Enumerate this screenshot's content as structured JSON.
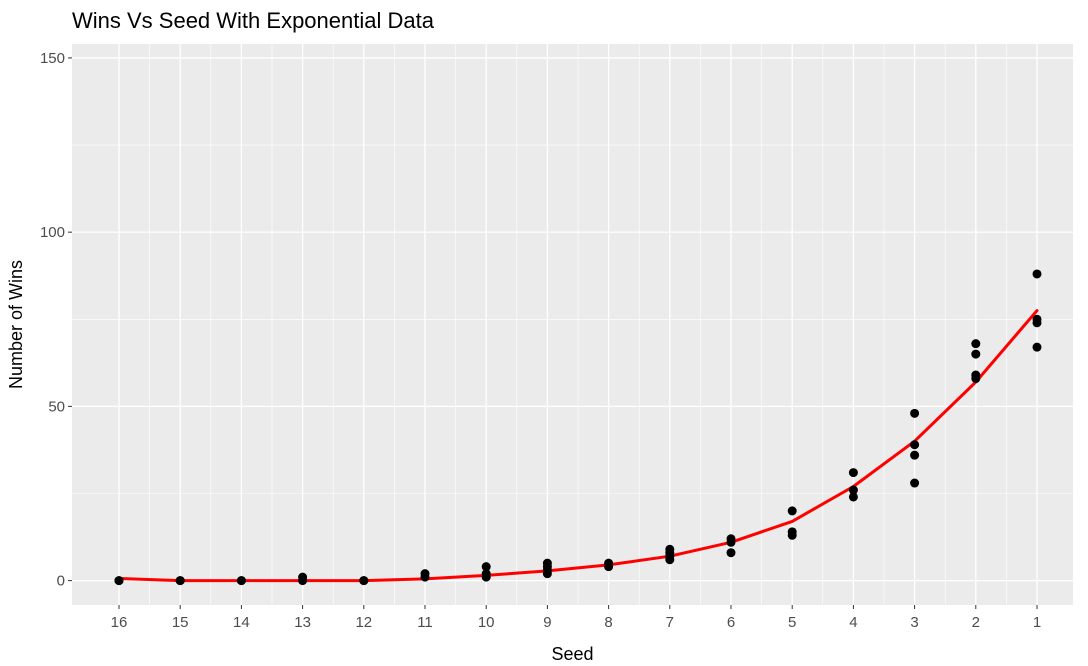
{
  "chart_data": {
    "type": "scatter",
    "title": "Wins Vs Seed With Exponential Data",
    "xlabel": "Seed",
    "ylabel": "Number of Wins",
    "x_categories": [
      "16",
      "15",
      "14",
      "13",
      "12",
      "11",
      "10",
      "9",
      "8",
      "7",
      "6",
      "5",
      "4",
      "3",
      "2",
      "1"
    ],
    "y_ticks": [
      0,
      50,
      100,
      150
    ],
    "ylim": [
      -7,
      154
    ],
    "grid": true,
    "point_color": "#000000",
    "line_color": "#ff0000",
    "panel_background": "#ebebeb",
    "series": [
      {
        "type": "points",
        "values": [
          {
            "x": "16",
            "y": 0
          },
          {
            "x": "16",
            "y": 0
          },
          {
            "x": "15",
            "y": 0
          },
          {
            "x": "15",
            "y": 0
          },
          {
            "x": "14",
            "y": 0
          },
          {
            "x": "14",
            "y": 0
          },
          {
            "x": "13",
            "y": 0
          },
          {
            "x": "13",
            "y": 1
          },
          {
            "x": "12",
            "y": 0
          },
          {
            "x": "12",
            "y": 0
          },
          {
            "x": "11",
            "y": 1
          },
          {
            "x": "11",
            "y": 2
          },
          {
            "x": "10",
            "y": 1
          },
          {
            "x": "10",
            "y": 2
          },
          {
            "x": "10",
            "y": 4
          },
          {
            "x": "9",
            "y": 2
          },
          {
            "x": "9",
            "y": 3
          },
          {
            "x": "9",
            "y": 4
          },
          {
            "x": "9",
            "y": 5
          },
          {
            "x": "8",
            "y": 4
          },
          {
            "x": "8",
            "y": 5
          },
          {
            "x": "7",
            "y": 6
          },
          {
            "x": "7",
            "y": 7
          },
          {
            "x": "7",
            "y": 8
          },
          {
            "x": "7",
            "y": 9
          },
          {
            "x": "6",
            "y": 8
          },
          {
            "x": "6",
            "y": 11
          },
          {
            "x": "6",
            "y": 12
          },
          {
            "x": "5",
            "y": 13
          },
          {
            "x": "5",
            "y": 14
          },
          {
            "x": "5",
            "y": 20
          },
          {
            "x": "4",
            "y": 24
          },
          {
            "x": "4",
            "y": 26
          },
          {
            "x": "4",
            "y": 31
          },
          {
            "x": "3",
            "y": 28
          },
          {
            "x": "3",
            "y": 36
          },
          {
            "x": "3",
            "y": 39
          },
          {
            "x": "3",
            "y": 48
          },
          {
            "x": "2",
            "y": 58
          },
          {
            "x": "2",
            "y": 59
          },
          {
            "x": "2",
            "y": 65
          },
          {
            "x": "2",
            "y": 68
          },
          {
            "x": "1",
            "y": 67
          },
          {
            "x": "1",
            "y": 74
          },
          {
            "x": "1",
            "y": 75
          },
          {
            "x": "1",
            "y": 88
          }
        ]
      },
      {
        "type": "line",
        "values": [
          {
            "x": "16",
            "y": 0.6
          },
          {
            "x": "15",
            "y": 0
          },
          {
            "x": "14",
            "y": 0
          },
          {
            "x": "13",
            "y": 0
          },
          {
            "x": "12",
            "y": 0
          },
          {
            "x": "11",
            "y": 0.5
          },
          {
            "x": "10",
            "y": 1.5
          },
          {
            "x": "9",
            "y": 2.8
          },
          {
            "x": "8",
            "y": 4.5
          },
          {
            "x": "7",
            "y": 7
          },
          {
            "x": "6",
            "y": 11
          },
          {
            "x": "5",
            "y": 17
          },
          {
            "x": "4",
            "y": 27
          },
          {
            "x": "3",
            "y": 40
          },
          {
            "x": "2",
            "y": 57
          },
          {
            "x": "1",
            "y": 77.5
          }
        ]
      }
    ]
  }
}
